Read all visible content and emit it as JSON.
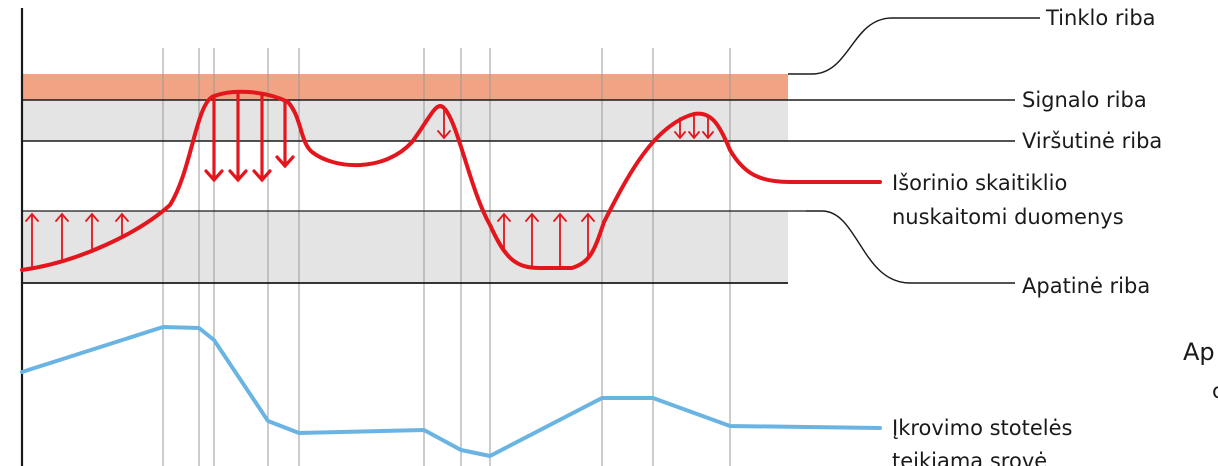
{
  "labels": {
    "grid_limit": "Tinklo riba",
    "signal_limit": "Signalo riba",
    "upper_limit": "Viršutinė riba",
    "meter_line1": "Išorinio skaitiklio",
    "meter_line2": "nuskaitomi duomenys",
    "lower_limit": "Apatinė riba",
    "side_cut_title": "Ap",
    "side_cut_sub": "c",
    "current_line1": "Įkrovimo stotelės",
    "current_line2": "teikiama srovė"
  },
  "colors": {
    "grid_band": "#f2a383",
    "grey_band": "#e4e4e4",
    "meter_line": "#e3161d",
    "current_line": "#6ab4e3",
    "guide_line": "#1a1a1a"
  }
}
